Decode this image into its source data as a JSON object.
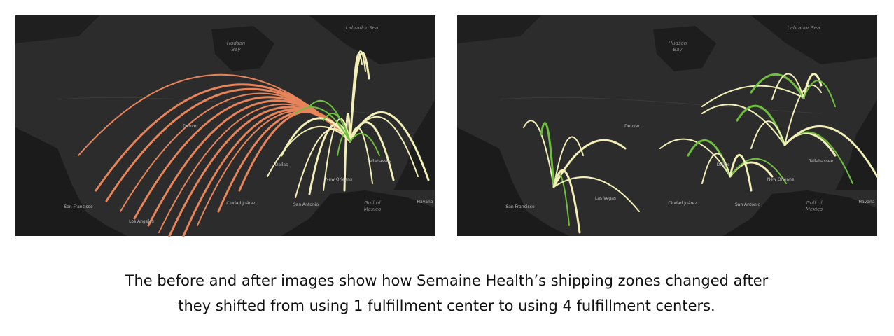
{
  "maps": [
    {
      "labels": [
        "Hudson",
        "Bay",
        "Labrador Sea",
        "San Francisco",
        "Los Angeles",
        "Ciudad Juárez",
        "San Antonio",
        "New Orleans",
        "Gulf of",
        "Mexico",
        "Havana",
        "Tallahassee",
        "Dallas",
        "Denver"
      ]
    },
    {
      "labels": [
        "Hudson",
        "Bay",
        "Labrador Sea",
        "San Francisco",
        "Las Vegas",
        "Ciudad Juárez",
        "San Antonio",
        "New Orleans",
        "Gulf of",
        "Mexico",
        "Havana",
        "Tallahassee",
        "Dallas",
        "Denver"
      ]
    }
  ],
  "caption": [
    "The before and after images show how Semaine Health’s shipping zones changed after",
    "they shifted from using 1 fulfillment center to using 4 fulfillment centers."
  ]
}
